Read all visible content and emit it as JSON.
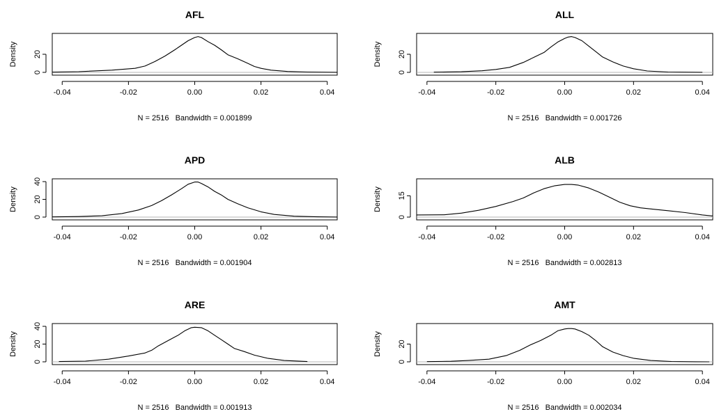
{
  "chart_data": [
    {
      "type": "line",
      "title": "AFL",
      "ylabel": "Density",
      "subtitle": "N = 2516   Bandwidth = 0.001899",
      "xlim": [
        -0.043,
        0.043
      ],
      "ylim": [
        0,
        40
      ],
      "xticks": [
        "-0.04",
        "-0.02",
        "0.00",
        "0.02",
        "0.04"
      ],
      "xtick_values": [
        -0.04,
        -0.02,
        0,
        0.02,
        0.04
      ],
      "yticks": [
        "0",
        "20"
      ],
      "ytick_values": [
        0,
        20
      ],
      "x": [
        -0.043,
        -0.035,
        -0.025,
        -0.018,
        -0.015,
        -0.012,
        -0.009,
        -0.006,
        -0.004,
        -0.002,
        0.0,
        0.001,
        0.002,
        0.004,
        0.006,
        0.008,
        0.01,
        0.013,
        0.016,
        0.018,
        0.02,
        0.023,
        0.028,
        0.034,
        0.043
      ],
      "y": [
        0.2,
        0.8,
        2.5,
        4.5,
        7,
        12,
        18,
        25,
        30,
        35,
        38.5,
        39.5,
        38.5,
        34,
        30,
        25,
        19.5,
        15,
        10,
        6.5,
        4.5,
        2.5,
        1,
        0.4,
        0.1
      ]
    },
    {
      "type": "line",
      "title": "ALL",
      "ylabel": "Density",
      "subtitle": "N = 2516   Bandwidth = 0.001726",
      "xlim": [
        -0.043,
        0.043
      ],
      "ylim": [
        0,
        40
      ],
      "xticks": [
        "-0.04",
        "-0.02",
        "0.00",
        "0.02",
        "0.04"
      ],
      "xtick_values": [
        -0.04,
        -0.02,
        0,
        0.02,
        0.04
      ],
      "yticks": [
        "0",
        "20"
      ],
      "ytick_values": [
        0,
        20
      ],
      "x": [
        -0.038,
        -0.03,
        -0.024,
        -0.02,
        -0.016,
        -0.012,
        -0.009,
        -0.006,
        -0.004,
        -0.002,
        0.0,
        0.001,
        0.002,
        0.003,
        0.005,
        0.007,
        0.009,
        0.011,
        0.014,
        0.017,
        0.02,
        0.024,
        0.03,
        0.04
      ],
      "y": [
        0.2,
        0.7,
        1.8,
        3.2,
        5.5,
        11,
        16.5,
        22,
        28,
        33.5,
        37.5,
        39,
        39.5,
        38.5,
        35,
        29,
        23,
        17,
        11.5,
        7,
        4,
        1.5,
        0.4,
        0.1
      ]
    },
    {
      "type": "line",
      "title": "APD",
      "ylabel": "Density",
      "subtitle": "N = 2516   Bandwidth = 0.001904",
      "xlim": [
        -0.043,
        0.043
      ],
      "ylim": [
        0,
        40
      ],
      "xticks": [
        "-0.04",
        "-0.02",
        "0.00",
        "0.02",
        "0.04"
      ],
      "xtick_values": [
        -0.04,
        -0.02,
        0,
        0.02,
        0.04
      ],
      "yticks": [
        "0",
        "20",
        "40"
      ],
      "ytick_values": [
        0,
        20,
        40
      ],
      "x": [
        -0.043,
        -0.035,
        -0.028,
        -0.022,
        -0.017,
        -0.013,
        -0.01,
        -0.007,
        -0.004,
        -0.002,
        0.0,
        0.001,
        0.002,
        0.004,
        0.006,
        0.008,
        0.01,
        0.013,
        0.016,
        0.02,
        0.024,
        0.03,
        0.037,
        0.043
      ],
      "y": [
        0.2,
        0.6,
        1.5,
        4,
        8,
        13,
        18.5,
        25,
        32,
        37,
        39.5,
        39.5,
        38,
        34,
        29,
        25,
        20,
        15,
        10.5,
        6,
        3,
        1,
        0.3,
        0.1
      ]
    },
    {
      "type": "line",
      "title": "ALB",
      "ylabel": "Density",
      "subtitle": "N = 2516   Bandwidth = 0.002813",
      "xlim": [
        -0.043,
        0.043
      ],
      "ylim": [
        0,
        25
      ],
      "xticks": [
        "-0.04",
        "-0.02",
        "0.00",
        "0.02",
        "0.04"
      ],
      "xtick_values": [
        -0.04,
        -0.02,
        0,
        0.02,
        0.04
      ],
      "yticks": [
        "0",
        "15"
      ],
      "ytick_values": [
        0,
        15
      ],
      "x": [
        -0.043,
        -0.035,
        -0.03,
        -0.025,
        -0.02,
        -0.015,
        -0.012,
        -0.009,
        -0.006,
        -0.003,
        0.0,
        0.002,
        0.004,
        0.007,
        0.01,
        0.013,
        0.016,
        0.019,
        0.022,
        0.026,
        0.03,
        0.035,
        0.04,
        0.043
      ],
      "y": [
        1.5,
        1.6,
        2.8,
        4.8,
        7.5,
        11,
        13.5,
        17,
        20,
        22,
        23,
        23,
        22.5,
        20.5,
        17.5,
        14,
        10.5,
        8,
        6.5,
        5.5,
        4.5,
        3.2,
        1.5,
        0.8
      ]
    },
    {
      "type": "line",
      "title": "ARE",
      "ylabel": "Density",
      "subtitle": "N = 2516   Bandwidth = 0.001913",
      "xlim": [
        -0.043,
        0.043
      ],
      "ylim": [
        0,
        40
      ],
      "xticks": [
        "-0.04",
        "-0.02",
        "0.00",
        "0.02",
        "0.04"
      ],
      "xtick_values": [
        -0.04,
        -0.02,
        0,
        0.02,
        0.04
      ],
      "yticks": [
        "0",
        "20",
        "40"
      ],
      "ytick_values": [
        0,
        20,
        40
      ],
      "x": [
        -0.041,
        -0.033,
        -0.026,
        -0.02,
        -0.015,
        -0.013,
        -0.011,
        -0.008,
        -0.005,
        -0.003,
        -0.001,
        0.0,
        0.002,
        0.004,
        0.006,
        0.008,
        0.01,
        0.012,
        0.015,
        0.018,
        0.022,
        0.027,
        0.034
      ],
      "y": [
        0.3,
        0.8,
        3,
        6.5,
        10,
        13,
        18,
        24,
        30,
        35,
        38.5,
        39,
        38.5,
        35,
        30,
        25,
        20,
        15,
        11.5,
        7.5,
        4,
        1.5,
        0.3
      ]
    },
    {
      "type": "line",
      "title": "AMT",
      "ylabel": "Density",
      "subtitle": "N = 2516   Bandwidth = 0.002034",
      "xlim": [
        -0.043,
        0.043
      ],
      "ylim": [
        0,
        40
      ],
      "xticks": [
        "-0.04",
        "-0.02",
        "0.00",
        "0.02",
        "0.04"
      ],
      "xtick_values": [
        -0.04,
        -0.02,
        0,
        0.02,
        0.04
      ],
      "yticks": [
        "0",
        "20"
      ],
      "ytick_values": [
        0,
        20
      ],
      "x": [
        -0.04,
        -0.033,
        -0.028,
        -0.022,
        -0.017,
        -0.013,
        -0.01,
        -0.007,
        -0.004,
        -0.002,
        0.0,
        0.001,
        0.002,
        0.003,
        0.005,
        0.007,
        0.009,
        0.011,
        0.014,
        0.017,
        0.02,
        0.025,
        0.031,
        0.038,
        0.042
      ],
      "y": [
        0.2,
        0.6,
        1.5,
        3,
        7,
        13,
        19,
        24,
        30,
        35,
        37,
        37.5,
        37.5,
        37,
        34,
        30,
        24,
        17,
        11,
        7,
        4,
        1.5,
        0.4,
        0.1,
        0
      ]
    }
  ]
}
